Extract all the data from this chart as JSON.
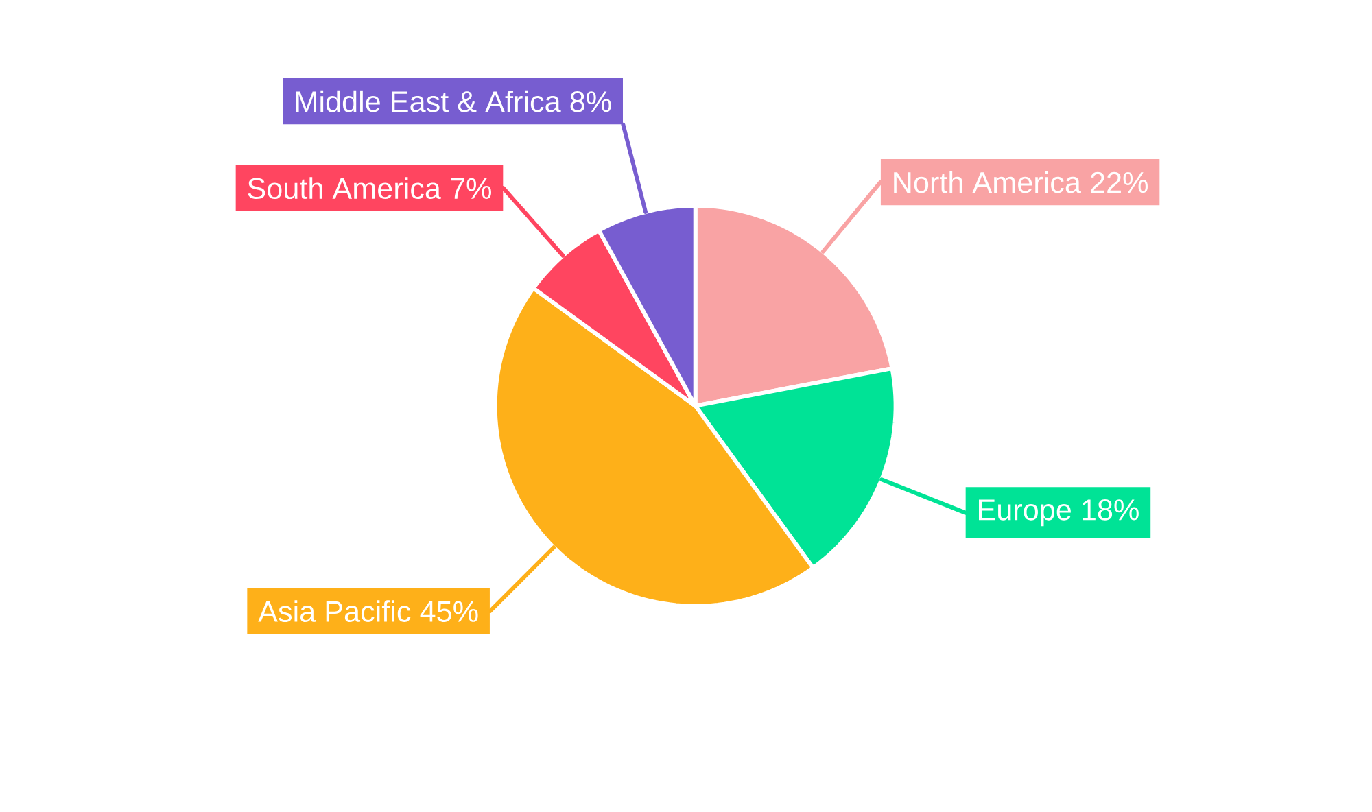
{
  "chart_data": {
    "type": "pie",
    "categories": [
      "North America",
      "Europe",
      "Asia Pacific",
      "South America",
      "Middle East & Africa"
    ],
    "values": [
      22,
      18,
      45,
      7,
      8
    ],
    "value_labels": [
      "22%",
      "18%",
      "45%",
      "7%",
      "8%"
    ],
    "colors": [
      "#f9a3a4",
      "#00e396",
      "#feb019",
      "#ff4560",
      "#775dd0"
    ]
  }
}
